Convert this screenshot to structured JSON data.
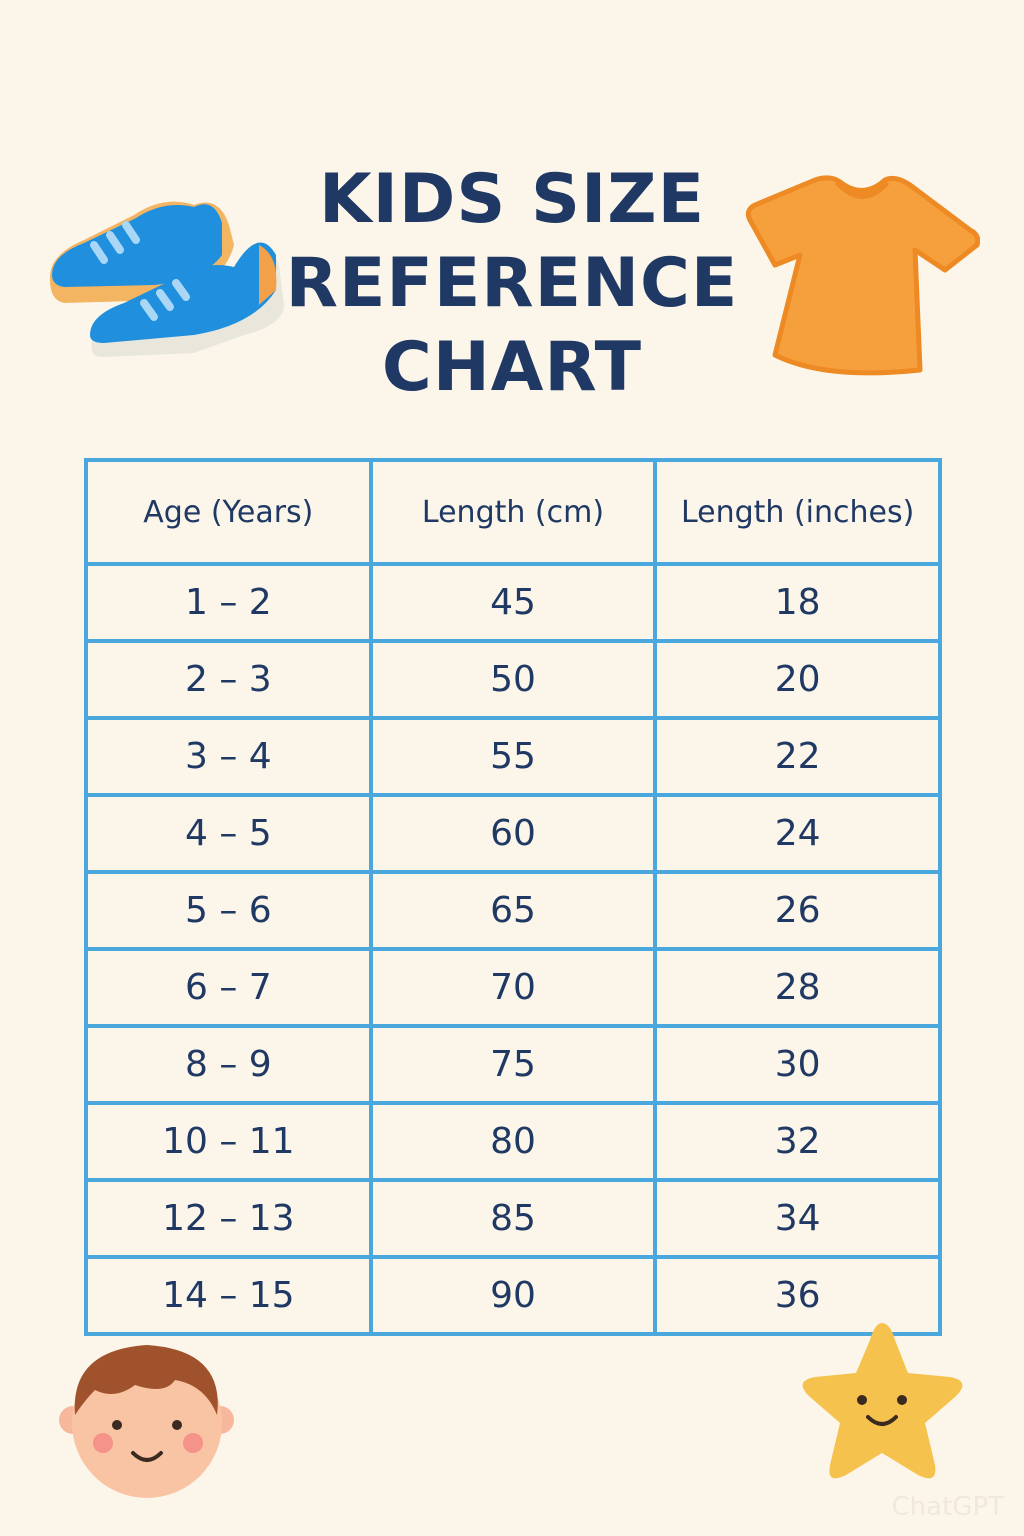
{
  "header": {
    "title_lines": [
      "KIDS SIZE",
      "REFERENCE",
      "CHART"
    ]
  },
  "table": {
    "headers": [
      "Age (Years)",
      "Length (cm)",
      "Length (inches)"
    ],
    "rows": [
      [
        "1 – 2",
        45,
        18
      ],
      [
        "2 – 3",
        50,
        20
      ],
      [
        "3 – 4",
        55,
        22
      ],
      [
        "4 – 5",
        60,
        24
      ],
      [
        "5 – 6",
        65,
        26
      ],
      [
        "6 – 7",
        70,
        28
      ],
      [
        "8 – 9",
        75,
        30
      ],
      [
        "10 – 11",
        80,
        32
      ],
      [
        "12 – 13",
        85,
        34
      ],
      [
        "14 – 15",
        90,
        36
      ]
    ]
  },
  "watermark": "ChatGPT"
}
